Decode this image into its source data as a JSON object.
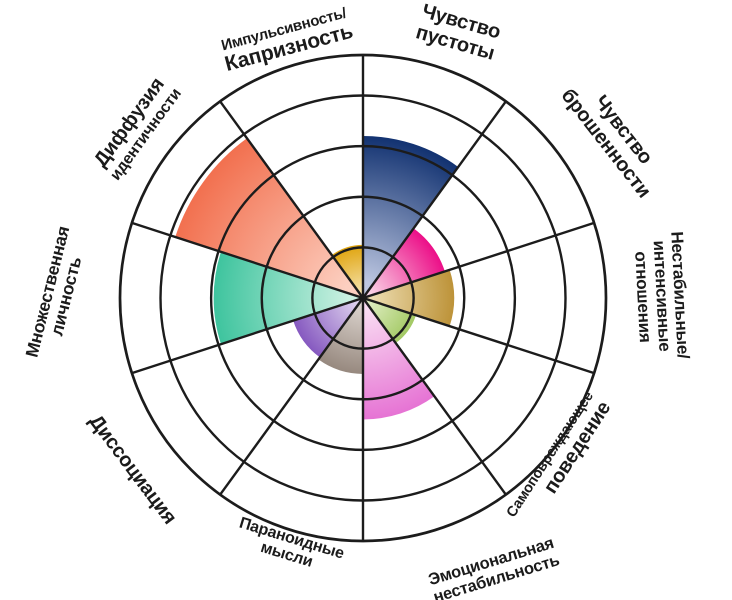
{
  "chart_data": {
    "type": "pie",
    "subtype": "polar-area-rose-chart (coxcomb), 10 equal 36° sectors, clockwise from 12 o'clock",
    "grid": "on",
    "r_axis": {
      "max": 4.8,
      "gridlines": [
        1,
        2,
        3,
        4
      ],
      "grid_color": "#1c1c1c"
    },
    "categories": [
      {
        "label_lines": [
          "Чувство",
          "пустоты"
        ],
        "value": 3.2,
        "color_outer": "#123271",
        "color_inner": "#bcc6e0"
      },
      {
        "label_lines": [
          "Чувство",
          "брошенности"
        ],
        "value": 1.7,
        "color_outer": "#ec0f88",
        "color_inner": "#fad2e6"
      },
      {
        "label_lines": [
          "Нестабильные/",
          "интенсивные",
          "отношения"
        ],
        "value": 1.8,
        "color_outer": "#bd9339",
        "color_inner": "#ecdcb0"
      },
      {
        "label_lines": [
          "Самоповреждающее",
          "поведение"
        ],
        "value": 1.1,
        "color_outer": "#a3c964",
        "color_inner": "#e0eec4"
      },
      {
        "label_lines": [
          "Эмоциональная",
          "нестабильность"
        ],
        "value": 2.4,
        "color_outer": "#e673d4",
        "color_inner": "#f9dcf2"
      },
      {
        "label_lines": [
          "Параноидные",
          "мысли"
        ],
        "value": 1.5,
        "color_outer": "#97897f",
        "color_inner": "#dbd3cd"
      },
      {
        "label_lines": [
          "Диссоциация"
        ],
        "value": 1.45,
        "color_outer": "#8659c0",
        "color_inner": "#ded1ee"
      },
      {
        "label_lines": [
          "Множественная",
          "личность"
        ],
        "value": 2.95,
        "color_outer": "#3ec49e",
        "color_inner": "#caf0e1"
      },
      {
        "label_lines": [
          "Диффузия",
          "идентичности"
        ],
        "value": 3.9,
        "color_outer": "#f2704f",
        "color_inner": "#fccfc0"
      },
      {
        "label_lines": [
          "Импульсивность/",
          "Капризность"
        ],
        "value": 1.05,
        "color_outer": "#e0a40e",
        "color_inner": "#f5e2ac"
      }
    ]
  }
}
